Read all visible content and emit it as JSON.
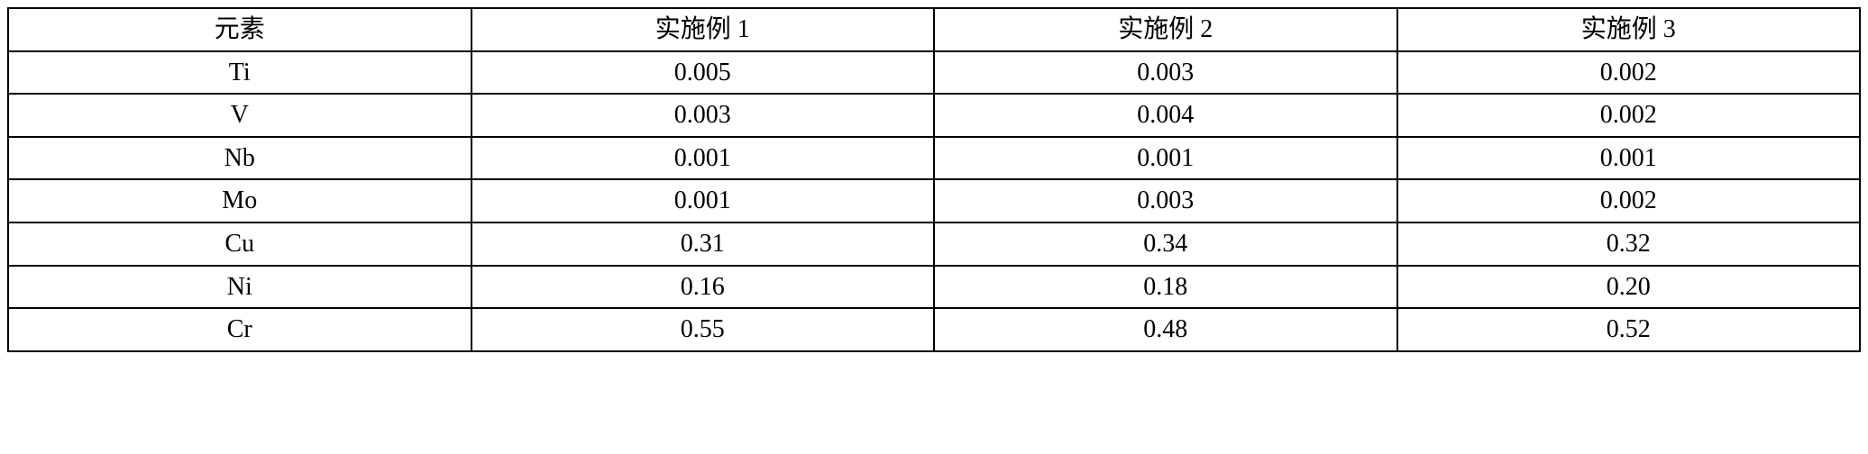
{
  "table": {
    "type": "table",
    "columns": [
      "元素",
      "实施例 1",
      "实施例 2",
      "实施例 3"
    ],
    "rows": [
      [
        "Ti",
        "0.005",
        "0.003",
        "0.002"
      ],
      [
        "V",
        "0.003",
        "0.004",
        "0.002"
      ],
      [
        "Nb",
        "0.001",
        "0.001",
        "0.001"
      ],
      [
        "Mo",
        "0.001",
        "0.003",
        "0.002"
      ],
      [
        "Cu",
        "0.31",
        "0.34",
        "0.32"
      ],
      [
        "Ni",
        "0.16",
        "0.18",
        "0.20"
      ],
      [
        "Cr",
        "0.55",
        "0.48",
        "0.52"
      ]
    ],
    "background_color": "#ffffff",
    "border_color": "#000000",
    "border_width": 2,
    "font_family": "Times New Roman, SimSun, serif",
    "header_fontsize": 28,
    "cell_fontsize": 28,
    "text_color": "#000000",
    "column_widths_pct": [
      25,
      25,
      25,
      25
    ],
    "text_align": "center"
  }
}
